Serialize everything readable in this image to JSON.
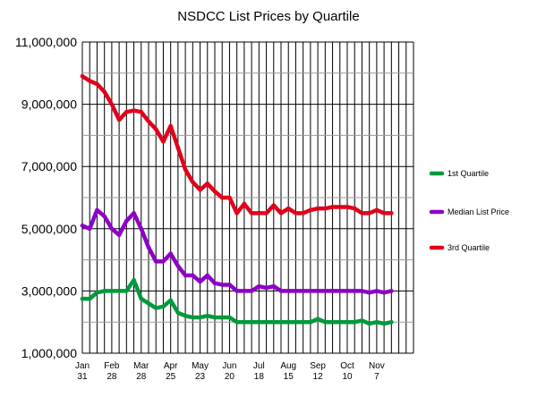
{
  "chart_data": {
    "type": "line",
    "title": "NSDCC List Prices by Quartile",
    "xlabel": "",
    "ylabel": "",
    "ylim": [
      1000000,
      11000000
    ],
    "y_ticks": [
      {
        "value": 1000000,
        "label": "1,000,000"
      },
      {
        "value": 3000000,
        "label": "3,000,000"
      },
      {
        "value": 5000000,
        "label": "5,000,000"
      },
      {
        "value": 7000000,
        "label": "7,000,000"
      },
      {
        "value": 9000000,
        "label": "9,000,000"
      },
      {
        "value": 11000000,
        "label": "11,000,000"
      }
    ],
    "x_ticks": [
      {
        "index": 0,
        "month": "Jan",
        "day": "31"
      },
      {
        "index": 4,
        "month": "Feb",
        "day": "28"
      },
      {
        "index": 8,
        "month": "Mar",
        "day": "28"
      },
      {
        "index": 12,
        "month": "Apr",
        "day": "25"
      },
      {
        "index": 16,
        "month": "May",
        "day": "23"
      },
      {
        "index": 20,
        "month": "Jun",
        "day": "20"
      },
      {
        "index": 24,
        "month": "Jul",
        "day": "18"
      },
      {
        "index": 28,
        "month": "Aug",
        "day": "15"
      },
      {
        "index": 32,
        "month": "Sep",
        "day": "12"
      },
      {
        "index": 36,
        "month": "Oct",
        "day": "10"
      },
      {
        "index": 40,
        "month": "Nov",
        "day": "7"
      }
    ],
    "x_slots": 45,
    "grid": true,
    "legend_position": "right",
    "series": [
      {
        "name": "1st Quartile",
        "color": "#009a3c",
        "values": [
          2750000,
          2750000,
          2950000,
          3000000,
          3000000,
          3000000,
          3000000,
          3350000,
          2750000,
          2600000,
          2450000,
          2500000,
          2700000,
          2300000,
          2200000,
          2150000,
          2150000,
          2200000,
          2150000,
          2150000,
          2150000,
          2000000,
          2000000,
          2000000,
          2000000,
          2000000,
          2000000,
          2000000,
          2000000,
          2000000,
          2000000,
          2000000,
          2100000,
          2000000,
          2000000,
          2000000,
          2000000,
          2000000,
          2050000,
          1950000,
          2000000,
          1950000,
          2000000
        ]
      },
      {
        "name": "Median List Price",
        "color": "#8e00c6",
        "values": [
          5100000,
          5000000,
          5600000,
          5400000,
          5000000,
          4800000,
          5250000,
          5500000,
          5000000,
          4400000,
          3950000,
          3950000,
          4200000,
          3800000,
          3500000,
          3500000,
          3300000,
          3500000,
          3250000,
          3200000,
          3200000,
          3000000,
          3000000,
          3000000,
          3150000,
          3100000,
          3150000,
          3000000,
          3000000,
          3000000,
          3000000,
          3000000,
          3000000,
          3000000,
          3000000,
          3000000,
          3000000,
          3000000,
          3000000,
          2950000,
          3000000,
          2950000,
          3000000
        ]
      },
      {
        "name": "3rd Quartile",
        "color": "#e0001b",
        "values": [
          9900000,
          9750000,
          9650000,
          9400000,
          9000000,
          8500000,
          8750000,
          8800000,
          8750000,
          8450000,
          8200000,
          7800000,
          8300000,
          7600000,
          6900000,
          6500000,
          6250000,
          6450000,
          6200000,
          6000000,
          6000000,
          5500000,
          5800000,
          5500000,
          5500000,
          5500000,
          5750000,
          5500000,
          5650000,
          5500000,
          5500000,
          5600000,
          5650000,
          5650000,
          5700000,
          5700000,
          5700000,
          5650000,
          5500000,
          5500000,
          5600000,
          5500000,
          5500000
        ]
      }
    ]
  }
}
